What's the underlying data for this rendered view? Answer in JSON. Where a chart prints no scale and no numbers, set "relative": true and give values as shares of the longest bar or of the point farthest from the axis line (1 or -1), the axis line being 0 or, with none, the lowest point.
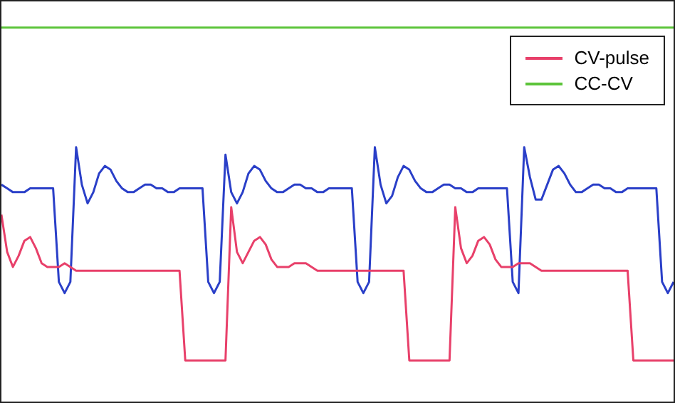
{
  "chart_data": {
    "type": "line",
    "relative": true,
    "legend": "top right",
    "grid": false,
    "marker": "none",
    "line_style": "solid",
    "categories": [
      null,
      null,
      null,
      null,
      null,
      null,
      null,
      null,
      null,
      null,
      null,
      null,
      null,
      null,
      null,
      null,
      null,
      null,
      null,
      null,
      null,
      null,
      null,
      null,
      null,
      null,
      null,
      null,
      null,
      null,
      null,
      null,
      null,
      null,
      null,
      null,
      null,
      null,
      null,
      null,
      null,
      null,
      null,
      null,
      null,
      null,
      null,
      null,
      null,
      null,
      null,
      null,
      null,
      null,
      null,
      null,
      null,
      null,
      null,
      null,
      null,
      null,
      null,
      null,
      null,
      null,
      null,
      null,
      null,
      null,
      null,
      null,
      null,
      null,
      null,
      null,
      null,
      null,
      null,
      null,
      null,
      null,
      null,
      null,
      null,
      null,
      null,
      null,
      null,
      null,
      null,
      null,
      null,
      null,
      null,
      null,
      null,
      null,
      null,
      null,
      null,
      null,
      null,
      null,
      null,
      null,
      null,
      null,
      null,
      null,
      null,
      null,
      null,
      null,
      null,
      null,
      null,
      null
    ],
    "series": [
      {
        "color": "#2a3fc8",
        "values": [
          0.58,
          0.57,
          0.56,
          0.56,
          0.56,
          0.57,
          0.57,
          0.57,
          0.57,
          0.57,
          0.32,
          0.29,
          0.32,
          0.68,
          0.58,
          0.53,
          0.56,
          0.61,
          0.63,
          0.62,
          0.59,
          0.57,
          0.56,
          0.56,
          0.57,
          0.58,
          0.58,
          0.57,
          0.57,
          0.56,
          0.56,
          0.57,
          0.57,
          0.57,
          0.57,
          0.57,
          0.32,
          0.29,
          0.32,
          0.66,
          0.56,
          0.53,
          0.56,
          0.61,
          0.63,
          0.62,
          0.59,
          0.57,
          0.56,
          0.56,
          0.57,
          0.58,
          0.58,
          0.57,
          0.57,
          0.56,
          0.56,
          0.57,
          0.57,
          0.57,
          0.57,
          0.57,
          0.32,
          0.29,
          0.32,
          0.68,
          0.58,
          0.53,
          0.55,
          0.6,
          0.63,
          0.62,
          0.59,
          0.57,
          0.56,
          0.56,
          0.57,
          0.58,
          0.58,
          0.57,
          0.57,
          0.56,
          0.56,
          0.57,
          0.57,
          0.57,
          0.57,
          0.57,
          0.57,
          0.32,
          0.29,
          0.68,
          0.6,
          0.54,
          0.54,
          0.58,
          0.62,
          0.63,
          0.61,
          0.58,
          0.56,
          0.56,
          0.57,
          0.58,
          0.58,
          0.57,
          0.57,
          0.56,
          0.56,
          0.57,
          0.57,
          0.57,
          0.57,
          0.57,
          0.57,
          0.32,
          0.29,
          0.32
        ]
      },
      {
        "name": "CV-pulse",
        "color": "#e8406a",
        "values": [
          0.5,
          0.4,
          0.36,
          0.39,
          0.43,
          0.44,
          0.41,
          0.37,
          0.36,
          0.36,
          0.36,
          0.37,
          0.36,
          0.35,
          0.35,
          0.35,
          0.35,
          0.35,
          0.35,
          0.35,
          0.35,
          0.35,
          0.35,
          0.35,
          0.35,
          0.35,
          0.35,
          0.35,
          0.35,
          0.35,
          0.35,
          0.35,
          0.11,
          0.11,
          0.11,
          0.11,
          0.11,
          0.11,
          0.11,
          0.11,
          0.52,
          0.4,
          0.37,
          0.4,
          0.43,
          0.44,
          0.42,
          0.38,
          0.36,
          0.36,
          0.36,
          0.37,
          0.37,
          0.37,
          0.36,
          0.35,
          0.35,
          0.35,
          0.35,
          0.35,
          0.35,
          0.35,
          0.35,
          0.35,
          0.35,
          0.35,
          0.35,
          0.35,
          0.35,
          0.35,
          0.35,
          0.11,
          0.11,
          0.11,
          0.11,
          0.11,
          0.11,
          0.11,
          0.11,
          0.52,
          0.41,
          0.37,
          0.39,
          0.43,
          0.44,
          0.42,
          0.38,
          0.36,
          0.36,
          0.36,
          0.37,
          0.37,
          0.37,
          0.36,
          0.35,
          0.35,
          0.35,
          0.35,
          0.35,
          0.35,
          0.35,
          0.35,
          0.35,
          0.35,
          0.35,
          0.35,
          0.35,
          0.35,
          0.35,
          0.35,
          0.11,
          0.11,
          0.11,
          0.11,
          0.11,
          0.11,
          0.11,
          0.11
        ]
      },
      {
        "name": "CC-CV",
        "color": "#5cc43a",
        "values": [
          1,
          1,
          1,
          1,
          1,
          1,
          1,
          1,
          1,
          1,
          1,
          1,
          1,
          1,
          1,
          1,
          1,
          1,
          1,
          1,
          1,
          1,
          1,
          1,
          1,
          1,
          1,
          1,
          1,
          1,
          1,
          1,
          1,
          1,
          1,
          1,
          1,
          1,
          1,
          1,
          1,
          1,
          1,
          1,
          1,
          1,
          1,
          1,
          1,
          1,
          1,
          1,
          1,
          1,
          1,
          1,
          1,
          1,
          1,
          1,
          1,
          1,
          1,
          1,
          1,
          1,
          1,
          1,
          1,
          1,
          1,
          1,
          1,
          1,
          1,
          1,
          1,
          1,
          1,
          1,
          1,
          1,
          1,
          1,
          1,
          1,
          1,
          1,
          1,
          1,
          1,
          1,
          1,
          1,
          1,
          1,
          1,
          1,
          1,
          1,
          1,
          1,
          1,
          1,
          1,
          1,
          1,
          1,
          1,
          1,
          1,
          1,
          1,
          1,
          1,
          1,
          1,
          1
        ]
      }
    ]
  }
}
